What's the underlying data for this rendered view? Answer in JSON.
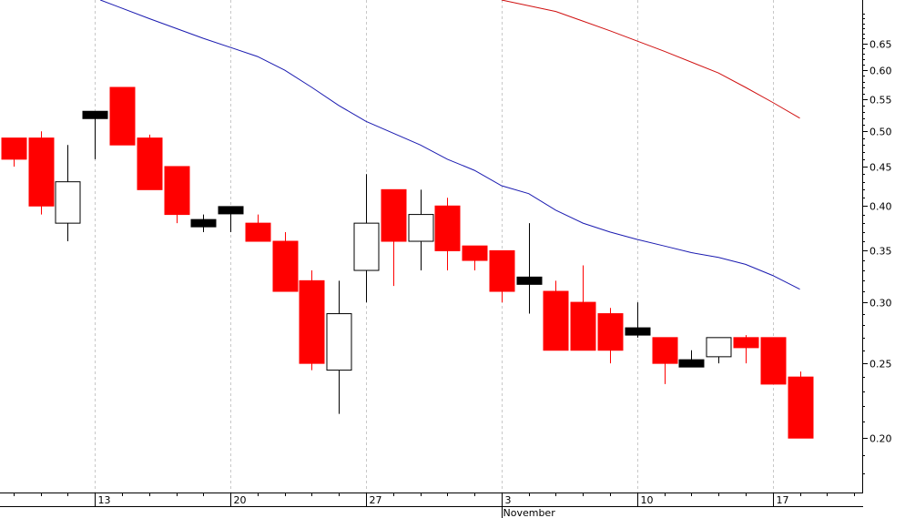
{
  "colors": {
    "background": "#ffffff",
    "axis": "#000000",
    "grid": "#c8c8c8",
    "down_candle": "#ff0000",
    "up_candle_fill": "#ffffff",
    "doji_candle": "#000000",
    "wick": "#000000",
    "ma_short": "#1a1ab0",
    "ma_long": "#d01010"
  },
  "chart_data": {
    "type": "candlestick",
    "y_scale": "log",
    "ylim": [
      0.17,
      0.74
    ],
    "grid": "vertical-dashed",
    "y_ticks": [
      "0.20",
      "0.25",
      "0.30",
      "0.35",
      "0.40",
      "0.45",
      "0.50",
      "0.55",
      "0.60",
      "0.65"
    ],
    "x_tick_labels": [
      {
        "day_index": 3,
        "label": "13"
      },
      {
        "day_index": 8,
        "label": "20"
      },
      {
        "day_index": 13,
        "label": "27"
      },
      {
        "day_index": 18,
        "label": "3"
      },
      {
        "day_index": 23,
        "label": "10"
      },
      {
        "day_index": 28,
        "label": "17"
      }
    ],
    "month_labels": [
      {
        "day_index": 18,
        "label": "November"
      }
    ],
    "x_range": [
      -0.5,
      31.3
    ],
    "candles": [
      {
        "i": 0,
        "open": 0.49,
        "high": 0.49,
        "low": 0.45,
        "close": 0.46
      },
      {
        "i": 1,
        "open": 0.49,
        "high": 0.5,
        "low": 0.39,
        "close": 0.4
      },
      {
        "i": 2,
        "open": 0.38,
        "high": 0.48,
        "low": 0.36,
        "close": 0.43
      },
      {
        "i": 3,
        "open": 0.525,
        "high": 0.525,
        "low": 0.46,
        "close": 0.525
      },
      {
        "i": 4,
        "open": 0.57,
        "high": 0.57,
        "low": 0.48,
        "close": 0.48
      },
      {
        "i": 5,
        "open": 0.49,
        "high": 0.495,
        "low": 0.42,
        "close": 0.42
      },
      {
        "i": 6,
        "open": 0.45,
        "high": 0.45,
        "low": 0.38,
        "close": 0.39
      },
      {
        "i": 7,
        "open": 0.38,
        "high": 0.39,
        "low": 0.37,
        "close": 0.38
      },
      {
        "i": 8,
        "open": 0.395,
        "high": 0.395,
        "low": 0.37,
        "close": 0.395
      },
      {
        "i": 9,
        "open": 0.38,
        "high": 0.39,
        "low": 0.36,
        "close": 0.36
      },
      {
        "i": 10,
        "open": 0.36,
        "high": 0.37,
        "low": 0.31,
        "close": 0.31
      },
      {
        "i": 11,
        "open": 0.32,
        "high": 0.33,
        "low": 0.245,
        "close": 0.25
      },
      {
        "i": 12,
        "open": 0.245,
        "high": 0.32,
        "low": 0.215,
        "close": 0.29
      },
      {
        "i": 13,
        "open": 0.33,
        "high": 0.44,
        "low": 0.3,
        "close": 0.38
      },
      {
        "i": 14,
        "open": 0.42,
        "high": 0.42,
        "low": 0.315,
        "close": 0.36
      },
      {
        "i": 15,
        "open": 0.36,
        "high": 0.42,
        "low": 0.33,
        "close": 0.39
      },
      {
        "i": 16,
        "open": 0.4,
        "high": 0.41,
        "low": 0.33,
        "close": 0.35
      },
      {
        "i": 17,
        "open": 0.355,
        "high": 0.355,
        "low": 0.33,
        "close": 0.34
      },
      {
        "i": 18,
        "open": 0.35,
        "high": 0.35,
        "low": 0.3,
        "close": 0.31
      },
      {
        "i": 19,
        "open": 0.32,
        "high": 0.38,
        "low": 0.29,
        "close": 0.32
      },
      {
        "i": 20,
        "open": 0.31,
        "high": 0.32,
        "low": 0.26,
        "close": 0.26
      },
      {
        "i": 21,
        "open": 0.3,
        "high": 0.335,
        "low": 0.26,
        "close": 0.26
      },
      {
        "i": 22,
        "open": 0.29,
        "high": 0.295,
        "low": 0.25,
        "close": 0.26
      },
      {
        "i": 23,
        "open": 0.275,
        "high": 0.3,
        "low": 0.27,
        "close": 0.275
      },
      {
        "i": 24,
        "open": 0.27,
        "high": 0.27,
        "low": 0.235,
        "close": 0.25
      },
      {
        "i": 25,
        "open": 0.25,
        "high": 0.26,
        "low": 0.25,
        "close": 0.25
      },
      {
        "i": 26,
        "open": 0.255,
        "high": 0.27,
        "low": 0.25,
        "close": 0.27
      },
      {
        "i": 27,
        "open": 0.27,
        "high": 0.272,
        "low": 0.25,
        "close": 0.262
      },
      {
        "i": 28,
        "open": 0.27,
        "high": 0.27,
        "low": 0.235,
        "close": 0.235
      },
      {
        "i": 29,
        "open": 0.24,
        "high": 0.244,
        "low": 0.2,
        "close": 0.2
      }
    ],
    "moving_averages": [
      {
        "role": "short",
        "points": [
          [
            3.2,
            0.74
          ],
          [
            5,
            0.7
          ],
          [
            7,
            0.66
          ],
          [
            9,
            0.625
          ],
          [
            10,
            0.6
          ],
          [
            11,
            0.57
          ],
          [
            12,
            0.54
          ],
          [
            13,
            0.515
          ],
          [
            15,
            0.48
          ],
          [
            16,
            0.46
          ],
          [
            17,
            0.445
          ],
          [
            18,
            0.425
          ],
          [
            19,
            0.415
          ],
          [
            20,
            0.395
          ],
          [
            21,
            0.38
          ],
          [
            22,
            0.37
          ],
          [
            23,
            0.362
          ],
          [
            24,
            0.355
          ],
          [
            25,
            0.348
          ],
          [
            26,
            0.343
          ],
          [
            27,
            0.336
          ],
          [
            28,
            0.325
          ],
          [
            29,
            0.312
          ]
        ]
      },
      {
        "role": "long",
        "points": [
          [
            18,
            0.74
          ],
          [
            20,
            0.715
          ],
          [
            22,
            0.675
          ],
          [
            24,
            0.635
          ],
          [
            26,
            0.595
          ],
          [
            27,
            0.57
          ],
          [
            28,
            0.545
          ],
          [
            29,
            0.52
          ]
        ]
      }
    ]
  }
}
